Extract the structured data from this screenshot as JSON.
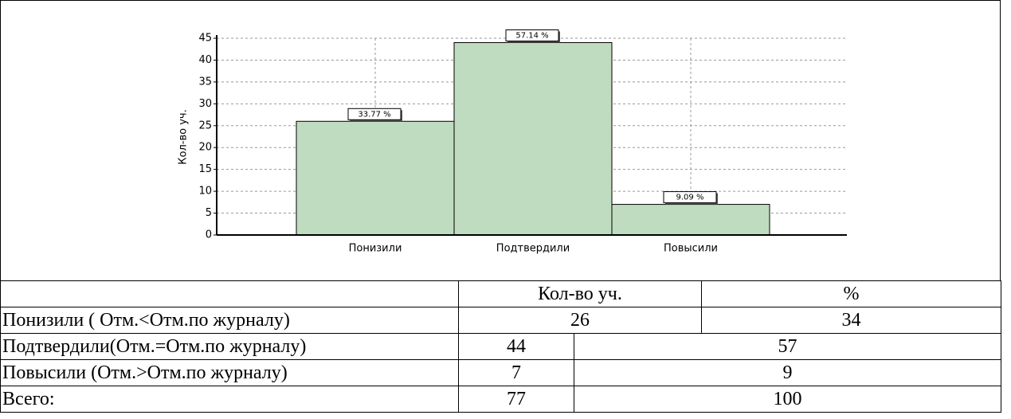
{
  "chart_data": {
    "type": "bar",
    "y_label": "Кол-во уч.",
    "categories": [
      "Понизили",
      "Подтвердили",
      "Повысили"
    ],
    "values": [
      26,
      44,
      7
    ],
    "labels": [
      "33.77 %",
      "57.14 %",
      "9.09 %"
    ],
    "color": "#c0dcc0",
    "ylim": [
      0,
      45
    ],
    "yticks": [
      0,
      5,
      10,
      15,
      20,
      25,
      30,
      35,
      40,
      45
    ],
    "grid": true
  },
  "table": {
    "header": [
      "Кол-во уч.",
      "%"
    ],
    "rows": [
      [
        "Понизили ( Отм.<Отм.по журналу)",
        26,
        34
      ],
      [
        "Подтвердили(Отм.=Отм.по журналу)",
        44,
        57
      ],
      [
        "Повысили (Отм.>Отм.по журналу)",
        7,
        9
      ],
      [
        "Всего:",
        77,
        100
      ]
    ]
  }
}
